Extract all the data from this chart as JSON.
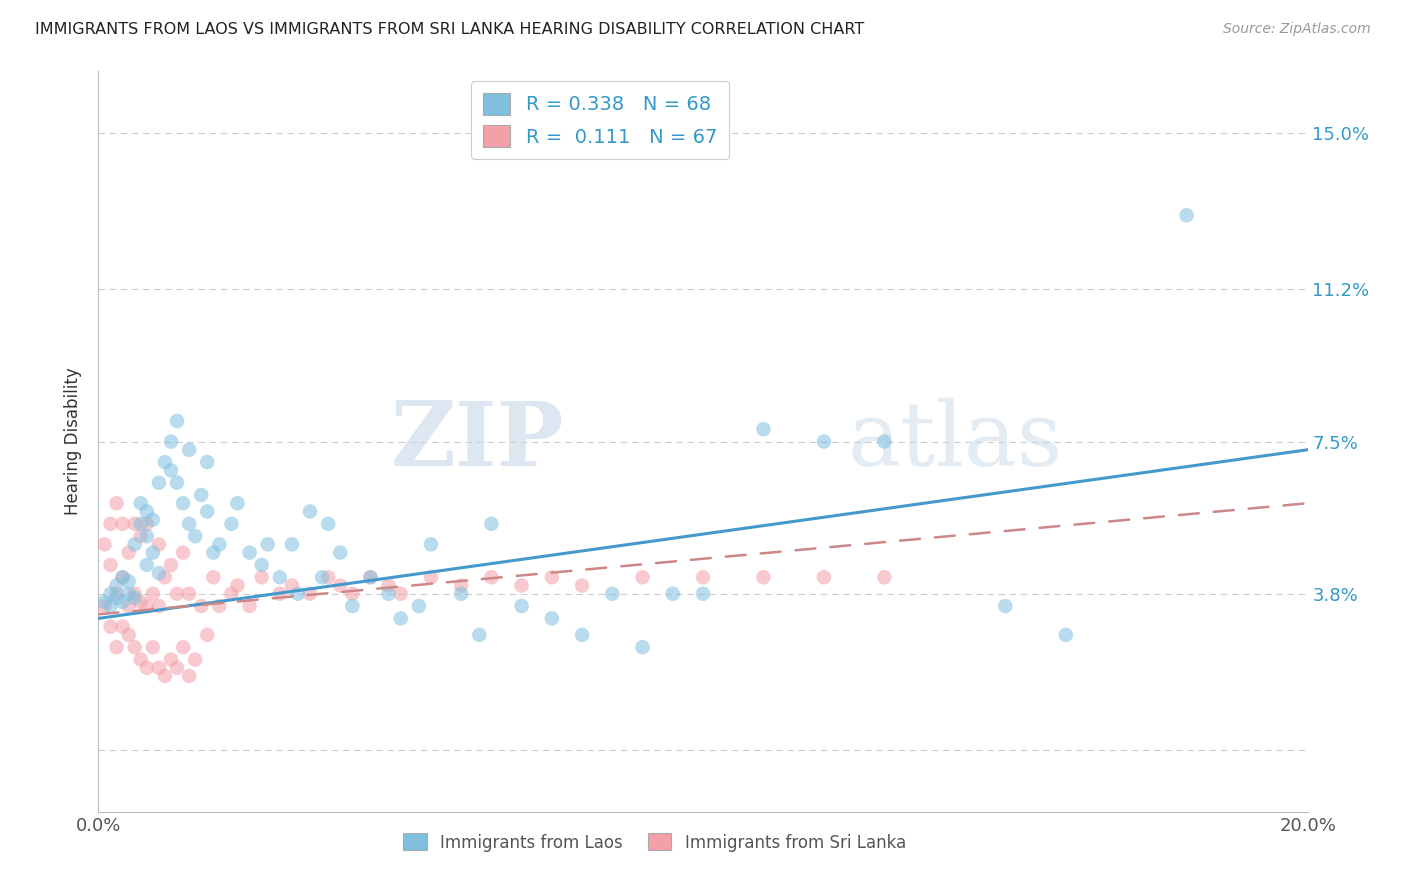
{
  "title": "IMMIGRANTS FROM LAOS VS IMMIGRANTS FROM SRI LANKA HEARING DISABILITY CORRELATION CHART",
  "source": "Source: ZipAtlas.com",
  "ylabel_label": "Hearing Disability",
  "xlim": [
    0.0,
    0.2
  ],
  "ylim": [
    -0.015,
    0.165
  ],
  "yticks": [
    0.0,
    0.038,
    0.075,
    0.112,
    0.15
  ],
  "ytick_labels": [
    "",
    "3.8%",
    "7.5%",
    "11.2%",
    "15.0%"
  ],
  "xticks": [
    0.0,
    0.05,
    0.1,
    0.15,
    0.2
  ],
  "xtick_labels": [
    "0.0%",
    "",
    "",
    "",
    "20.0%"
  ],
  "grid_color": "#cccccc",
  "background_color": "#ffffff",
  "blue_color": "#7fbfdf",
  "pink_color": "#f4a0a8",
  "line_blue": "#4499cc",
  "line_pink": "#cc8888",
  "legend_r_blue": "0.338",
  "legend_n_blue": "68",
  "legend_r_pink": "0.111",
  "legend_n_pink": "67",
  "watermark_zip": "ZIP",
  "watermark_atlas": "atlas",
  "blue_line_y0": 0.032,
  "blue_line_y1": 0.073,
  "pink_line_y0": 0.033,
  "pink_line_y1": 0.06,
  "laos_x": [
    0.001,
    0.002,
    0.002,
    0.003,
    0.003,
    0.004,
    0.004,
    0.005,
    0.005,
    0.006,
    0.006,
    0.007,
    0.007,
    0.008,
    0.008,
    0.008,
    0.009,
    0.009,
    0.01,
    0.01,
    0.011,
    0.012,
    0.012,
    0.013,
    0.013,
    0.014,
    0.015,
    0.015,
    0.016,
    0.017,
    0.018,
    0.018,
    0.019,
    0.02,
    0.022,
    0.023,
    0.025,
    0.027,
    0.028,
    0.03,
    0.032,
    0.033,
    0.035,
    0.037,
    0.038,
    0.04,
    0.042,
    0.045,
    0.048,
    0.05,
    0.053,
    0.055,
    0.06,
    0.063,
    0.065,
    0.07,
    0.075,
    0.08,
    0.085,
    0.09,
    0.095,
    0.1,
    0.11,
    0.12,
    0.13,
    0.15,
    0.16,
    0.18
  ],
  "laos_y": [
    0.036,
    0.035,
    0.038,
    0.037,
    0.04,
    0.036,
    0.042,
    0.038,
    0.041,
    0.037,
    0.05,
    0.055,
    0.06,
    0.045,
    0.052,
    0.058,
    0.048,
    0.056,
    0.043,
    0.065,
    0.07,
    0.068,
    0.075,
    0.065,
    0.08,
    0.06,
    0.055,
    0.073,
    0.052,
    0.062,
    0.058,
    0.07,
    0.048,
    0.05,
    0.055,
    0.06,
    0.048,
    0.045,
    0.05,
    0.042,
    0.05,
    0.038,
    0.058,
    0.042,
    0.055,
    0.048,
    0.035,
    0.042,
    0.038,
    0.032,
    0.035,
    0.05,
    0.038,
    0.028,
    0.055,
    0.035,
    0.032,
    0.028,
    0.038,
    0.025,
    0.038,
    0.038,
    0.078,
    0.075,
    0.075,
    0.035,
    0.028,
    0.13
  ],
  "srilanka_x": [
    0.001,
    0.001,
    0.002,
    0.002,
    0.002,
    0.003,
    0.003,
    0.003,
    0.004,
    0.004,
    0.004,
    0.005,
    0.005,
    0.005,
    0.006,
    0.006,
    0.006,
    0.007,
    0.007,
    0.007,
    0.008,
    0.008,
    0.008,
    0.009,
    0.009,
    0.01,
    0.01,
    0.01,
    0.011,
    0.011,
    0.012,
    0.012,
    0.013,
    0.013,
    0.014,
    0.014,
    0.015,
    0.015,
    0.016,
    0.017,
    0.018,
    0.019,
    0.02,
    0.022,
    0.023,
    0.025,
    0.027,
    0.03,
    0.032,
    0.035,
    0.038,
    0.04,
    0.042,
    0.045,
    0.048,
    0.05,
    0.055,
    0.06,
    0.065,
    0.07,
    0.075,
    0.08,
    0.09,
    0.1,
    0.11,
    0.12,
    0.13
  ],
  "srilanka_y": [
    0.035,
    0.05,
    0.03,
    0.045,
    0.055,
    0.025,
    0.038,
    0.06,
    0.03,
    0.042,
    0.055,
    0.028,
    0.035,
    0.048,
    0.025,
    0.038,
    0.055,
    0.022,
    0.036,
    0.052,
    0.02,
    0.035,
    0.055,
    0.025,
    0.038,
    0.02,
    0.035,
    0.05,
    0.018,
    0.042,
    0.022,
    0.045,
    0.02,
    0.038,
    0.025,
    0.048,
    0.018,
    0.038,
    0.022,
    0.035,
    0.028,
    0.042,
    0.035,
    0.038,
    0.04,
    0.035,
    0.042,
    0.038,
    0.04,
    0.038,
    0.042,
    0.04,
    0.038,
    0.042,
    0.04,
    0.038,
    0.042,
    0.04,
    0.042,
    0.04,
    0.042,
    0.04,
    0.042,
    0.042,
    0.042,
    0.042,
    0.042
  ]
}
